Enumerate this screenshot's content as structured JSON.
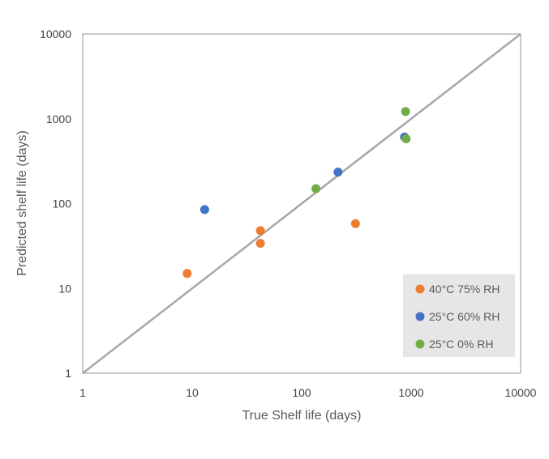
{
  "chart_data": {
    "type": "scatter",
    "title": "",
    "xlabel": "True Shelf life (days)",
    "ylabel": "Predicted shelf life (days)",
    "xscale": "log",
    "yscale": "log",
    "xlim": [
      1,
      10000
    ],
    "ylim": [
      1,
      10000
    ],
    "xticks": [
      "1",
      "10",
      "100",
      "1000",
      "10000"
    ],
    "yticks": [
      "1",
      "10",
      "100",
      "1000",
      "10000"
    ],
    "grid": false,
    "legend_position": "bottom-right",
    "reference_line": {
      "label": "",
      "from": [
        1,
        1
      ],
      "to": [
        10000,
        10000
      ],
      "color": "#a6a6a6"
    },
    "series": [
      {
        "name": "40°C 75% RH",
        "color": "#ed7d31",
        "points": [
          [
            9,
            15
          ],
          [
            42,
            48
          ],
          [
            42,
            34
          ],
          [
            310,
            58
          ]
        ]
      },
      {
        "name": "25°C 60% RH",
        "color": "#4472c4",
        "points": [
          [
            13,
            85
          ],
          [
            215,
            235
          ],
          [
            870,
            610
          ]
        ]
      },
      {
        "name": "25°C 0% RH",
        "color": "#70ad47",
        "points": [
          [
            135,
            150
          ],
          [
            890,
            1220
          ],
          [
            900,
            580
          ]
        ]
      }
    ]
  }
}
